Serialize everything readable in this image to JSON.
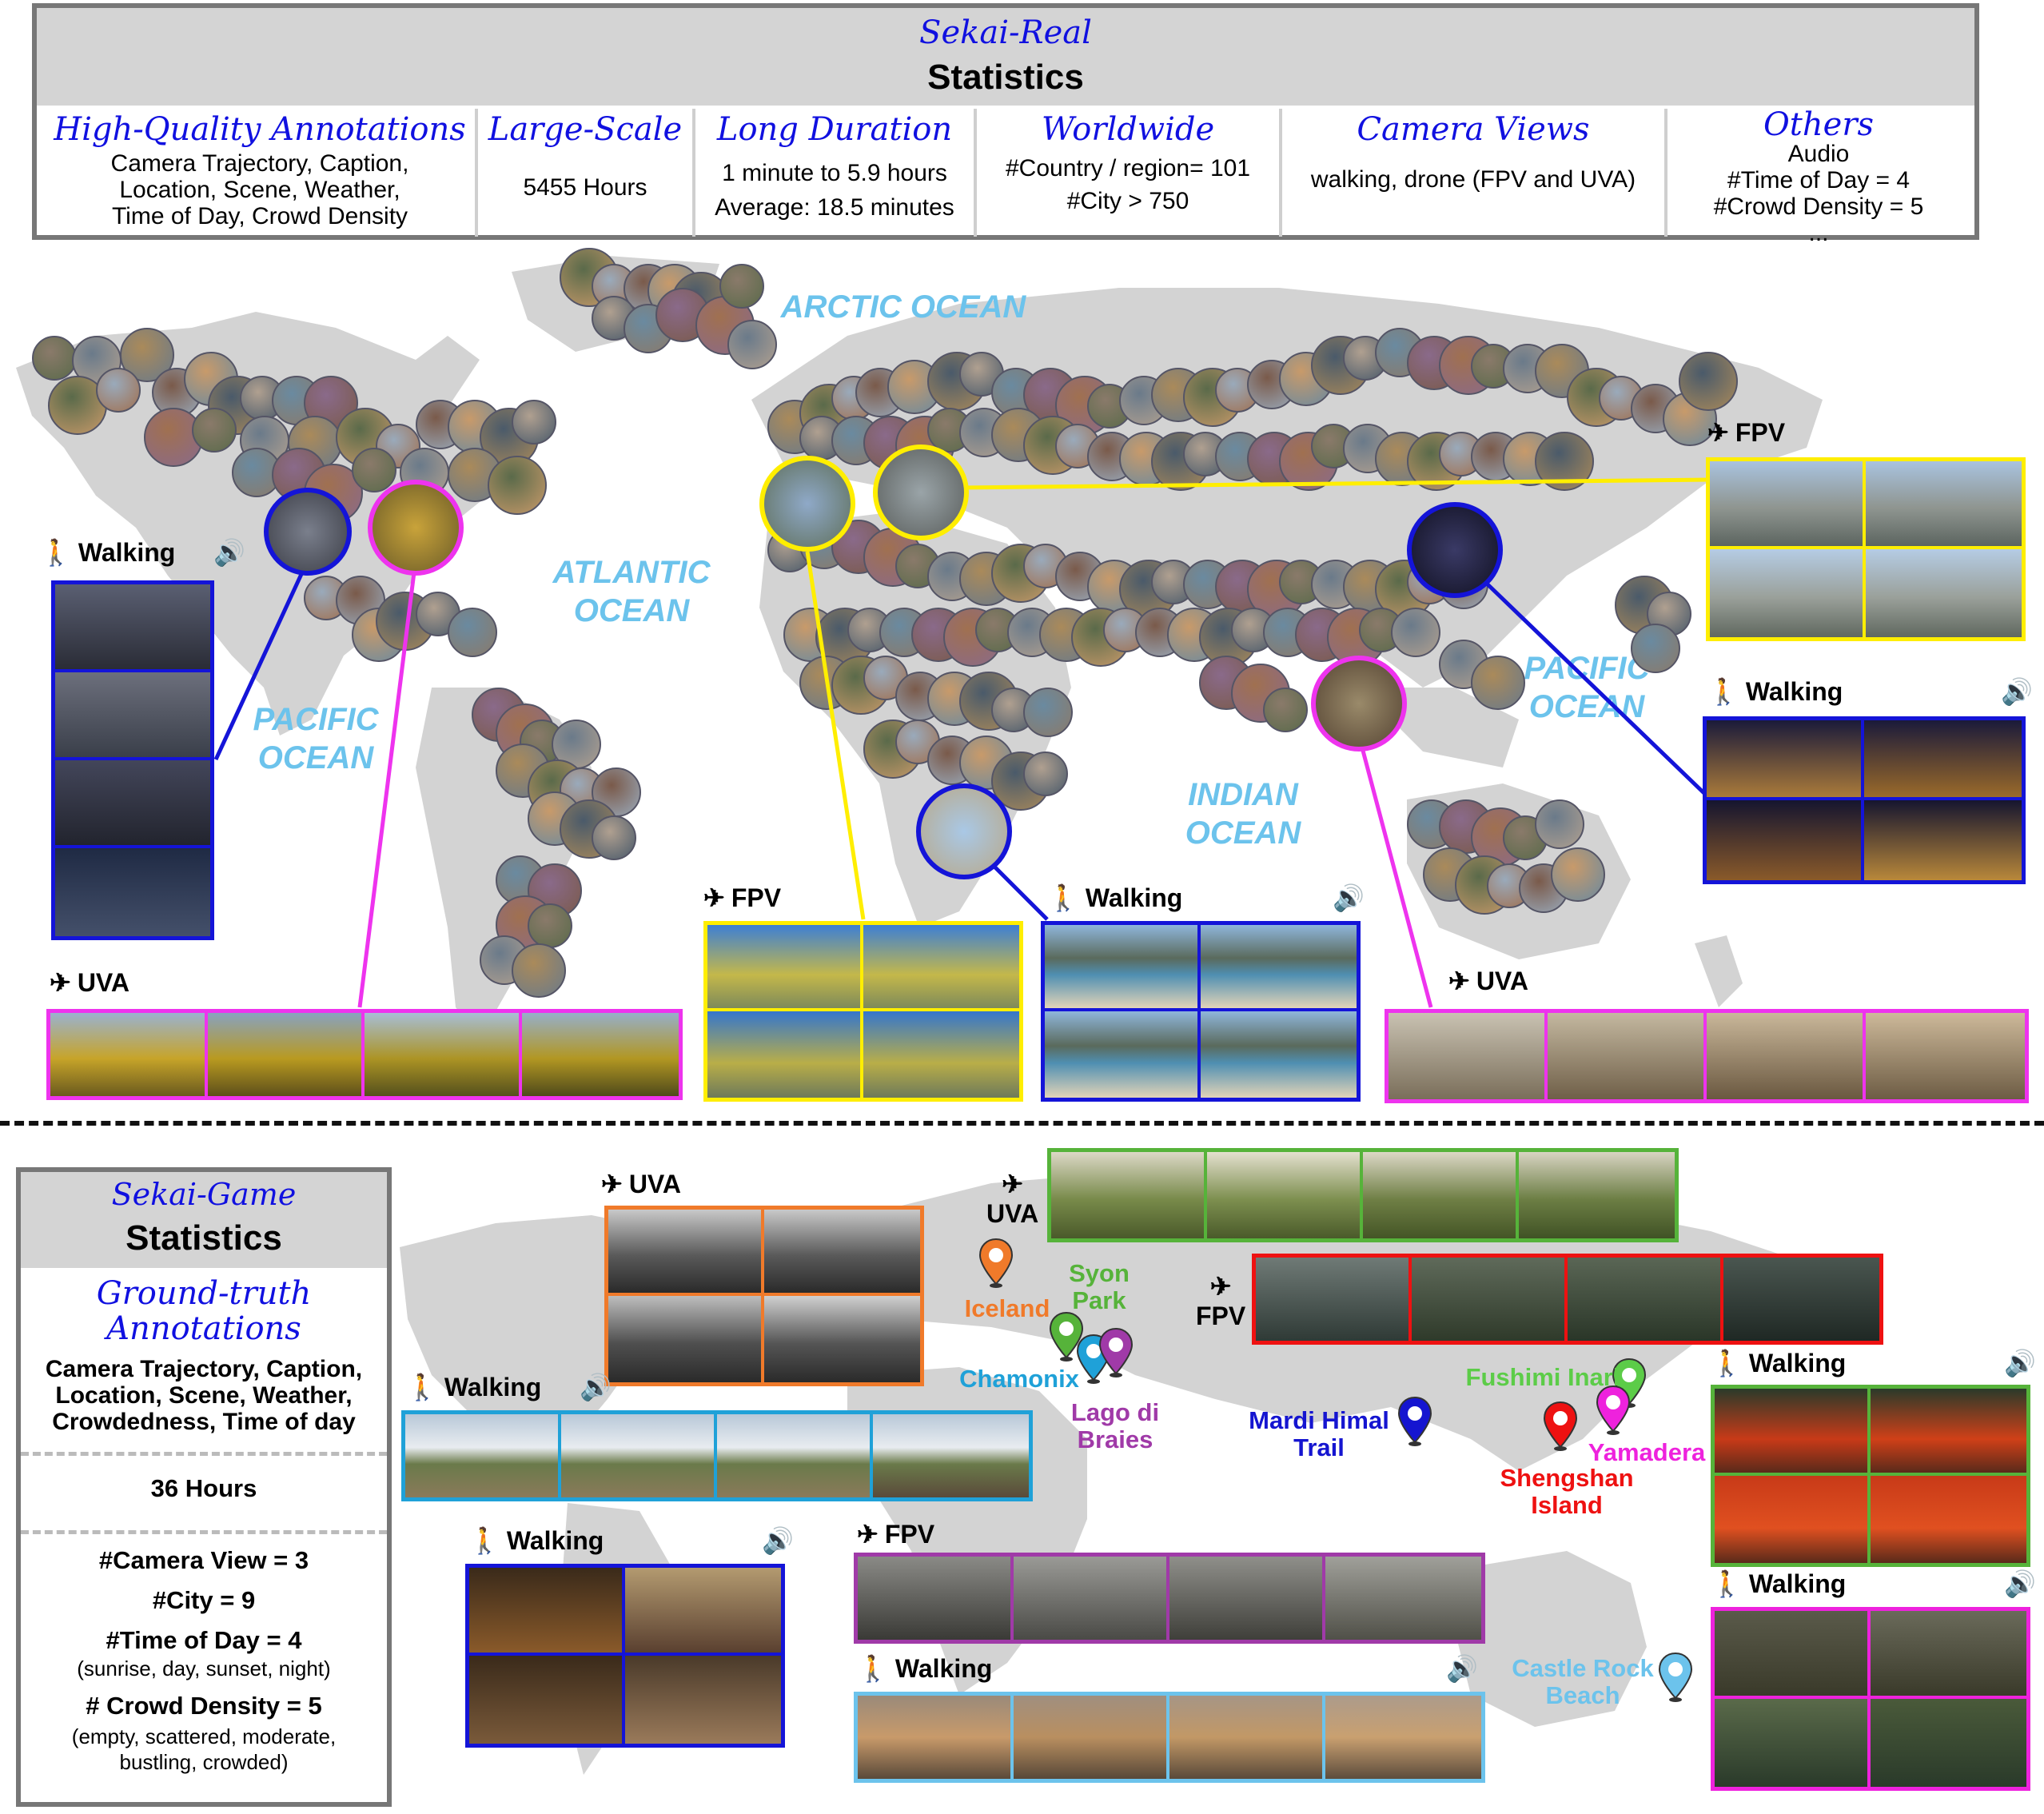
{
  "real": {
    "title": "Sekai-Real",
    "subtitle": "Statistics",
    "columns": [
      {
        "heading": "High-Quality Annotations",
        "body": [
          "Camera Trajectory, Caption,",
          "Location, Scene, Weather,",
          "Time of Day, Crowd Density"
        ]
      },
      {
        "heading": "Large-Scale",
        "body": [
          "5455 Hours"
        ]
      },
      {
        "heading": "Long Duration",
        "body": [
          "1 minute to 5.9 hours",
          "Average: 18.5 minutes"
        ]
      },
      {
        "heading": "Worldwide",
        "body": [
          "#Country / region= 101",
          "#City > 750"
        ]
      },
      {
        "heading": "Camera Views",
        "body": [
          "walking, drone (FPV and UVA)"
        ]
      },
      {
        "heading": "Others",
        "body": [
          "Audio",
          "#Time of Day = 4",
          "#Crowd Density = 5",
          "..."
        ]
      }
    ],
    "oceans": {
      "arctic": "ARCTIC OCEAN",
      "atlantic": [
        "ATLANTIC",
        "OCEAN"
      ],
      "pacific_west": [
        "PACIFIC",
        "OCEAN"
      ],
      "pacific_east": [
        "PACIFIC",
        "OCEAN"
      ],
      "indian": [
        "INDIAN",
        "OCEAN"
      ]
    },
    "clips": {
      "nyc_walking": "Walking",
      "rockies_uva": "UVA",
      "alps_fpv_left": "FPV",
      "capetown_walking": "Walking",
      "alps_fpv_right": "FPV",
      "shanghai_walking": "Walking",
      "singapore_uva": "UVA"
    }
  },
  "game": {
    "title": "Sekai-Game",
    "subtitle": "Statistics",
    "gt_heading": [
      "Ground-truth",
      "Annotations"
    ],
    "gt_body": [
      "Camera Trajectory, Caption,",
      "Location, Scene, Weather,",
      "Crowdedness, Time of day"
    ],
    "hours": "36 Hours",
    "counts": [
      {
        "main": "#Camera View = 3"
      },
      {
        "main": "#City = 9"
      },
      {
        "main": "#Time of Day = 4",
        "sub": "(sunrise, day, sunset, night)"
      },
      {
        "main": "# Crowd Density = 5",
        "sub": "(empty, scattered, moderate,\nbustling, crowded)"
      }
    ],
    "pins": [
      {
        "name": "Iceland",
        "color": "#f07a2a"
      },
      {
        "name": "Syon Park",
        "color": "#56b33a"
      },
      {
        "name": "Chamonix",
        "color": "#1fa1d8"
      },
      {
        "name": "Lago di Braies",
        "color": "#a03aa8"
      },
      {
        "name": "Mardi Himal Trail",
        "color": "#1515d0"
      },
      {
        "name": "Fushimi Inari",
        "color": "#5ccc48"
      },
      {
        "name": "Yamadera",
        "color": "#ee22dd"
      },
      {
        "name": "Shengshan Island",
        "color": "#ee1111"
      },
      {
        "name": "Castle Rock Beach",
        "color": "#6cc3ec"
      }
    ],
    "clips": {
      "iceland_uva": "UVA",
      "syon_uva": "UVA",
      "fpv_red": "FPV",
      "chamonix_walking": "Walking",
      "forest_walking": "Walking",
      "fpv_purple": "FPV",
      "beach_walking": "Walking",
      "fushimi_walking": "Walking",
      "yamadera_walking": "Walking"
    }
  },
  "colors": {
    "yellow": "#ffee00",
    "magenta": "#ee33ee",
    "blue": "#1414d8",
    "orange": "#f07a2a",
    "green": "#56b33a",
    "red": "#ee1111",
    "cyan": "#1fa1d8",
    "purple": "#a03aa8",
    "lightblue": "#6cc3ec"
  }
}
